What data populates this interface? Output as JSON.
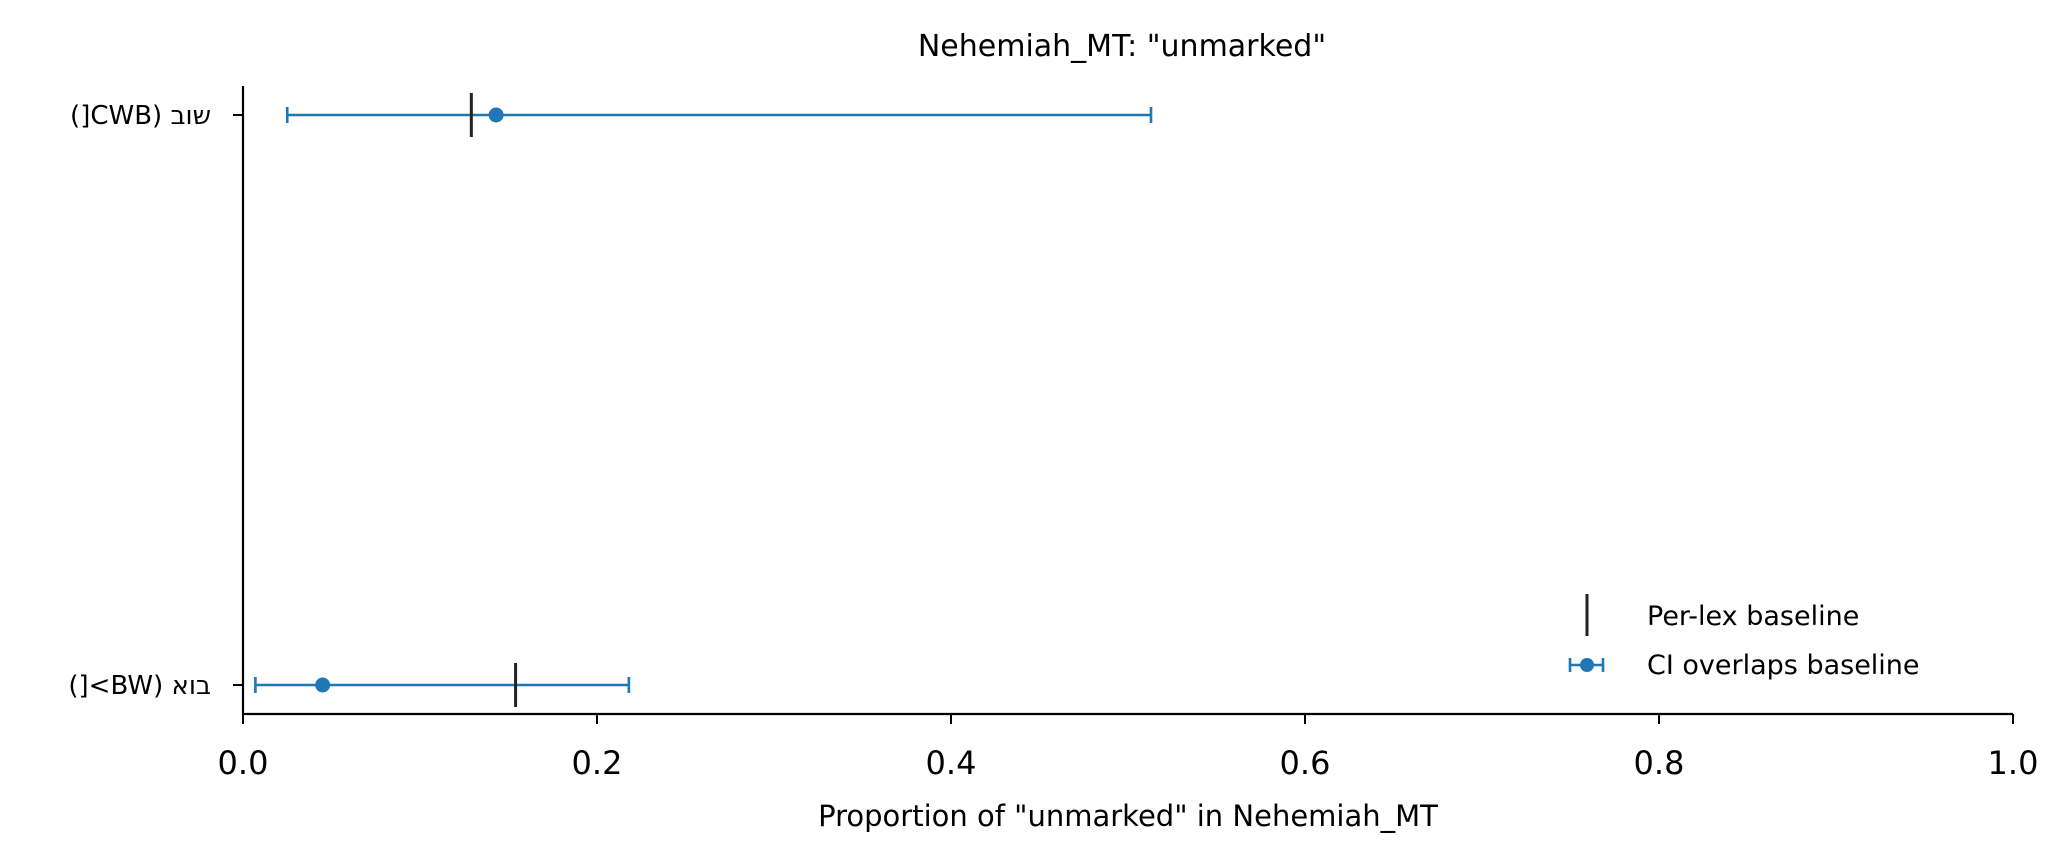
{
  "chart_data": {
    "type": "errorbar",
    "title": "Nehemiah_MT: \"unmarked\"",
    "xlabel": "Proportion of \"unmarked\" in Nehemiah_MT",
    "ylabel": "",
    "xlim": [
      0.0,
      1.0
    ],
    "xticks": [
      0.0,
      0.2,
      0.4,
      0.6,
      0.8,
      1.0
    ],
    "xtick_labels": [
      "0.0",
      "0.2",
      "0.4",
      "0.6",
      "0.8",
      "1.0"
    ],
    "grid": false,
    "categories": [
      "שוב (CWB[)",
      "בוא (BW>[)"
    ],
    "points": [
      {
        "label": "שוב (CWB[)",
        "value": 0.143,
        "ci_low": 0.025,
        "ci_high": 0.513,
        "baseline": 0.129
      },
      {
        "label": "בוא (BW>[)",
        "value": 0.045,
        "ci_low": 0.007,
        "ci_high": 0.218,
        "baseline": 0.154
      }
    ],
    "legend": {
      "placement": "lower-right",
      "entries": [
        {
          "label": "Per-lex baseline",
          "marker": "vertical-line",
          "color": "#222222"
        },
        {
          "label": "CI overlaps baseline",
          "marker": "point-errorbar",
          "color": "#1f77b4"
        }
      ]
    },
    "colors": {
      "series": "#1f77b4",
      "baseline": "#222222",
      "axis": "#000000"
    }
  }
}
